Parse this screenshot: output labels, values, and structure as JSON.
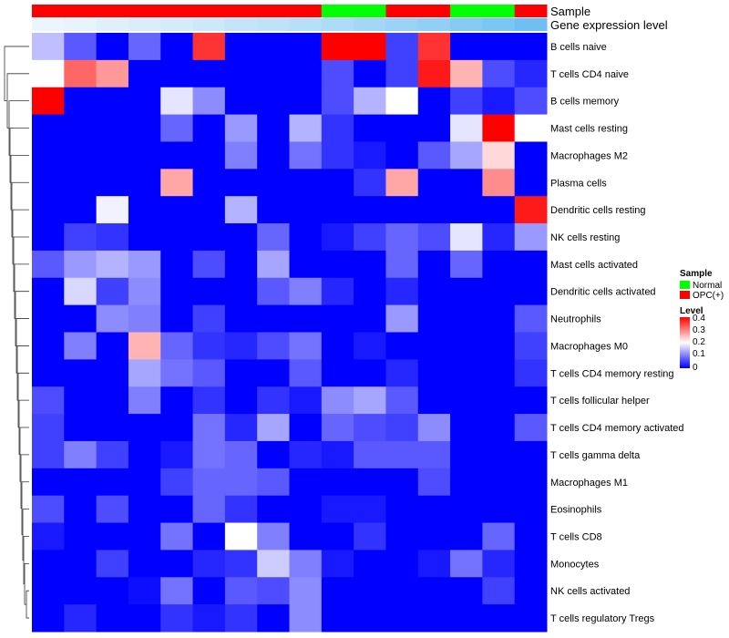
{
  "chart_data": {
    "type": "heatmap",
    "annotation_labels": {
      "sample": "Sample",
      "gene": "Gene expression level"
    },
    "row_labels": [
      "B cells naive",
      "T cells CD4 naive",
      "B cells memory",
      "Mast cells resting",
      "Macrophages M2",
      "Plasma cells",
      "Dendritic cells resting",
      "NK cells resting",
      "Mast cells activated",
      "Dendritic cells activated",
      "Neutrophils",
      "Macrophages M0",
      "T cells CD4 memory resting",
      "T cells follicular helper",
      "T cells CD4 memory activated",
      "T cells gamma delta",
      "Macrophages M1",
      "Eosinophils",
      "T cells CD8",
      "Monocytes",
      "NK cells activated",
      "T cells regulatory  Tregs"
    ],
    "sample_groups": [
      "OPC(+)",
      "OPC(+)",
      "OPC(+)",
      "OPC(+)",
      "OPC(+)",
      "OPC(+)",
      "OPC(+)",
      "OPC(+)",
      "OPC(+)",
      "Normal",
      "Normal",
      "OPC(+)",
      "OPC(+)",
      "Normal",
      "Normal",
      "OPC(+)"
    ],
    "gene_expression": [
      0.02,
      0.05,
      0.09,
      0.13,
      0.17,
      0.21,
      0.26,
      0.3,
      0.35,
      0.4,
      0.46,
      0.52,
      0.58,
      0.65,
      0.72,
      0.8
    ],
    "values": [
      [
        0.15,
        0.07,
        0.0,
        0.08,
        0.0,
        0.36,
        0.0,
        0.0,
        0.0,
        0.4,
        0.4,
        0.05,
        0.36,
        0.0,
        0.0,
        0.0
      ],
      [
        0.2,
        0.32,
        0.28,
        0.0,
        0.0,
        0.0,
        0.0,
        0.0,
        0.0,
        0.06,
        0.0,
        0.05,
        0.38,
        0.26,
        0.06,
        0.03
      ],
      [
        0.4,
        0.0,
        0.0,
        0.0,
        0.18,
        0.11,
        0.0,
        0.0,
        0.0,
        0.06,
        0.14,
        0.2,
        0.0,
        0.05,
        0.02,
        0.06
      ],
      [
        0.0,
        0.0,
        0.0,
        0.0,
        0.08,
        0.0,
        0.12,
        0.0,
        0.14,
        0.04,
        0.0,
        0.0,
        0.0,
        0.18,
        0.4,
        0.2
      ],
      [
        0.0,
        0.0,
        0.0,
        0.0,
        0.0,
        0.0,
        0.1,
        0.0,
        0.09,
        0.04,
        0.02,
        0.0,
        0.07,
        0.13,
        0.23,
        0.0
      ],
      [
        0.0,
        0.0,
        0.0,
        0.0,
        0.27,
        0.0,
        0.0,
        0.0,
        0.0,
        0.0,
        0.04,
        0.27,
        0.0,
        0.0,
        0.29,
        0.0
      ],
      [
        0.0,
        0.0,
        0.19,
        0.0,
        0.0,
        0.0,
        0.14,
        0.0,
        0.0,
        0.0,
        0.0,
        0.0,
        0.0,
        0.0,
        0.0,
        0.38
      ],
      [
        0.0,
        0.05,
        0.04,
        0.0,
        0.0,
        0.0,
        0.0,
        0.08,
        0.0,
        0.02,
        0.05,
        0.08,
        0.06,
        0.18,
        0.03,
        0.12
      ],
      [
        0.07,
        0.12,
        0.14,
        0.12,
        0.0,
        0.06,
        0.0,
        0.13,
        0.0,
        0.0,
        0.0,
        0.08,
        0.0,
        0.08,
        0.0,
        0.0
      ],
      [
        0.0,
        0.17,
        0.05,
        0.11,
        0.0,
        0.0,
        0.0,
        0.07,
        0.1,
        0.03,
        0.0,
        0.03,
        0.0,
        0.0,
        0.0,
        0.0
      ],
      [
        0.0,
        0.0,
        0.11,
        0.1,
        0.0,
        0.05,
        0.0,
        0.0,
        0.0,
        0.0,
        0.0,
        0.12,
        0.0,
        0.0,
        0.0,
        0.07
      ],
      [
        0.0,
        0.1,
        0.0,
        0.26,
        0.08,
        0.04,
        0.03,
        0.06,
        0.09,
        0.0,
        0.02,
        0.0,
        0.0,
        0.0,
        0.0,
        0.05
      ],
      [
        0.0,
        0.0,
        0.0,
        0.13,
        0.09,
        0.07,
        0.0,
        0.0,
        0.07,
        0.0,
        0.0,
        0.03,
        0.0,
        0.0,
        0.0,
        0.04
      ],
      [
        0.06,
        0.0,
        0.0,
        0.1,
        0.0,
        0.04,
        0.0,
        0.04,
        0.02,
        0.11,
        0.13,
        0.07,
        0.0,
        0.0,
        0.0,
        0.0
      ],
      [
        0.05,
        0.0,
        0.0,
        0.0,
        0.0,
        0.09,
        0.03,
        0.13,
        0.0,
        0.08,
        0.06,
        0.05,
        0.11,
        0.0,
        0.0,
        0.07
      ],
      [
        0.05,
        0.1,
        0.05,
        0.0,
        0.02,
        0.09,
        0.08,
        0.0,
        0.03,
        0.02,
        0.07,
        0.07,
        0.07,
        0.0,
        0.0,
        0.0
      ],
      [
        0.0,
        0.0,
        0.0,
        0.0,
        0.05,
        0.08,
        0.08,
        0.07,
        0.0,
        0.0,
        0.0,
        0.0,
        0.06,
        0.0,
        0.0,
        0.0
      ],
      [
        0.06,
        0.0,
        0.06,
        0.0,
        0.0,
        0.08,
        0.04,
        0.0,
        0.0,
        0.02,
        0.02,
        0.0,
        0.0,
        0.0,
        0.0,
        0.0
      ],
      [
        0.02,
        0.0,
        0.0,
        0.0,
        0.09,
        0.0,
        0.2,
        0.1,
        0.0,
        0.0,
        0.04,
        0.0,
        0.0,
        0.0,
        0.08,
        0.0
      ],
      [
        0.0,
        0.0,
        0.05,
        0.0,
        0.0,
        0.03,
        0.04,
        0.16,
        0.1,
        0.02,
        0.0,
        0.0,
        0.02,
        0.09,
        0.03,
        0.0
      ],
      [
        0.0,
        0.0,
        0.0,
        0.01,
        0.09,
        0.0,
        0.07,
        0.06,
        0.11,
        0.0,
        0.0,
        0.0,
        0.0,
        0.0,
        0.05,
        0.0
      ],
      [
        0.0,
        0.03,
        0.0,
        0.0,
        0.04,
        0.02,
        0.04,
        0.0,
        0.11,
        0.0,
        0.0,
        0.0,
        0.0,
        0.0,
        0.0,
        0.0
      ]
    ],
    "legend": {
      "sample_title": "Sample",
      "sample_entries": [
        {
          "label": "Normal",
          "color": "#00ff00"
        },
        {
          "label": "OPC(+)",
          "color": "#ff0000"
        }
      ],
      "level_title": "Level",
      "level_ticks": [
        "0.4",
        "0.3",
        "0.2",
        "0.1",
        "0"
      ],
      "level_range": [
        0,
        0.4
      ]
    },
    "colors": {
      "low": "#0000ff",
      "mid": "#ffffff",
      "high": "#ff0000",
      "normal": "#00ff00",
      "opc": "#ff0000"
    }
  }
}
